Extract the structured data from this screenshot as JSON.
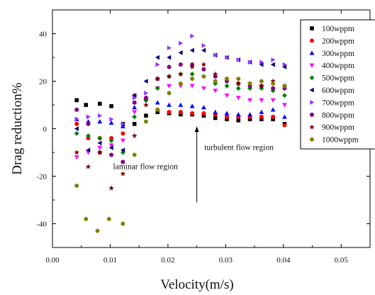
{
  "chart_data": {
    "type": "scatter",
    "title": "",
    "xlabel": "Velocity(m/s)",
    "ylabel": "Drag reduction%",
    "xlim": [
      0.0,
      0.055
    ],
    "ylim": [
      -50,
      50
    ],
    "xticks": [
      "0.00",
      "0.01",
      "0.02",
      "0.03",
      "0.04",
      "0.05"
    ],
    "xtick_values": [
      0.0,
      0.01,
      0.02,
      0.03,
      0.04,
      0.05
    ],
    "yticks": [
      "40",
      "20",
      "0",
      "-20",
      "-40"
    ],
    "ytick_values": [
      40,
      20,
      0,
      -20,
      -40
    ],
    "grid": false,
    "legend_position": "top-right",
    "annotations": [
      {
        "text": "laminar flow region",
        "x": 0.0105,
        "y": -17
      },
      {
        "text": "turbulent flow region",
        "x": 0.0263,
        "y": -9
      }
    ],
    "arrow": {
      "x": 0.025,
      "y_from": -31,
      "y_to": 1
    },
    "series": [
      {
        "name": "100wppm",
        "color": "#000000",
        "marker": "square",
        "x": [
          0.0042,
          0.0058,
          0.0082,
          0.0102,
          0.0122,
          0.0142,
          0.0162,
          0.0182,
          0.0202,
          0.0222,
          0.0242,
          0.0262,
          0.0282,
          0.0302,
          0.0322,
          0.0342,
          0.0362,
          0.0382,
          0.0402
        ],
        "y": [
          12,
          10,
          10.5,
          9.5,
          2,
          2,
          5.5,
          7,
          6.5,
          6,
          6,
          5.5,
          4.5,
          4,
          3.5,
          4,
          4,
          4,
          2
        ]
      },
      {
        "name": "200wppm",
        "color": "#ff0000",
        "marker": "circle",
        "x": [
          0.0042,
          0.0062,
          0.0082,
          0.0102,
          0.0122,
          0.0142,
          0.0162,
          0.0182,
          0.0202,
          0.0222,
          0.0242,
          0.0262,
          0.0282,
          0.0302,
          0.0322,
          0.0342,
          0.0362,
          0.0382,
          0.0402
        ],
        "y": [
          2,
          -4,
          -4,
          -4,
          -2,
          14,
          12,
          8,
          7,
          7,
          6.5,
          6.5,
          6,
          5,
          5,
          5,
          5,
          5,
          1.5
        ]
      },
      {
        "name": "300wppm",
        "color": "#0000ff",
        "marker": "triangle-up",
        "x": [
          0.0042,
          0.0062,
          0.0082,
          0.0102,
          0.0122,
          0.0142,
          0.0162,
          0.0182,
          0.0202,
          0.0222,
          0.0242,
          0.0262,
          0.0282,
          0.0302,
          0.0322,
          0.0342,
          0.0362,
          0.0382,
          0.0402
        ],
        "y": [
          4,
          3,
          3,
          2.5,
          1,
          9,
          13,
          11,
          10,
          10,
          9.5,
          9,
          7,
          6.5,
          6,
          6,
          7,
          8,
          5
        ]
      },
      {
        "name": "400wppm",
        "color": "#ff00ff",
        "marker": "triangle-down",
        "x": [
          0.0042,
          0.0062,
          0.0082,
          0.0102,
          0.0122,
          0.0142,
          0.0162,
          0.0182,
          0.0202,
          0.0222,
          0.0242,
          0.0262,
          0.0282,
          0.0302,
          0.0322,
          0.0342,
          0.0362,
          0.0382,
          0.0402
        ],
        "y": [
          -12,
          -10,
          -8,
          -7,
          -5,
          7,
          12,
          17,
          18,
          18,
          18,
          17,
          16,
          14,
          13,
          12,
          12,
          12,
          10
        ]
      },
      {
        "name": "500wppm",
        "color": "#008000",
        "marker": "diamond",
        "x": [
          0.0042,
          0.0062,
          0.0082,
          0.0102,
          0.0122,
          0.0142,
          0.0162,
          0.0182,
          0.0202,
          0.0222,
          0.0242,
          0.0262,
          0.0282,
          0.0302,
          0.0322,
          0.0342,
          0.0362,
          0.0382,
          0.0402
        ],
        "y": [
          -2,
          -3,
          -4,
          -5,
          -10,
          5,
          12,
          17,
          22,
          23,
          23,
          22,
          19,
          18,
          17,
          17,
          17,
          16,
          14
        ]
      },
      {
        "name": "600wppm",
        "color": "#000080",
        "marker": "triangle-left",
        "x": [
          0.0042,
          0.0062,
          0.0082,
          0.0102,
          0.0122,
          0.0142,
          0.0162,
          0.0182,
          0.0202,
          0.0222,
          0.0242,
          0.0262,
          0.0282,
          0.0302,
          0.0322,
          0.0342,
          0.0362,
          0.0382,
          0.0402
        ],
        "y": [
          0,
          -9,
          -6,
          -8,
          -9,
          14,
          20,
          30,
          30,
          32,
          33,
          33,
          31,
          30,
          29,
          28,
          27,
          27,
          26
        ]
      },
      {
        "name": "700wppm",
        "color": "#9933ff",
        "marker": "triangle-right",
        "x": [
          0.0042,
          0.0062,
          0.0082,
          0.0102,
          0.0122,
          0.0142,
          0.0162,
          0.0182,
          0.0202,
          0.0222,
          0.0242,
          0.0262,
          0.0282,
          0.0302,
          0.0322,
          0.0342,
          0.0362,
          0.0382,
          0.0402
        ],
        "y": [
          4,
          5,
          5.5,
          4,
          2,
          13,
          15,
          27,
          34,
          36,
          39,
          35,
          31,
          30,
          29,
          28,
          28,
          29,
          27
        ]
      },
      {
        "name": "800wppm",
        "color": "#800080",
        "marker": "circle",
        "x": [
          0.0042,
          0.0062,
          0.0082,
          0.0102,
          0.0122,
          0.0142,
          0.0162,
          0.0182,
          0.0202,
          0.0222,
          0.0242,
          0.0262,
          0.0282,
          0.0302,
          0.0322,
          0.0342,
          0.0362,
          0.0382,
          0.0402
        ],
        "y": [
          8,
          2,
          -10,
          -11,
          -14,
          11,
          13,
          21,
          26,
          27,
          27,
          25,
          22,
          20,
          19,
          18,
          18,
          17,
          17
        ]
      },
      {
        "name": "900wppm",
        "color": "#800000",
        "marker": "star",
        "x": [
          0.0042,
          0.0062,
          0.0082,
          0.0102,
          0.0122,
          0.0142,
          0.0162,
          0.0182,
          0.0202,
          0.0222,
          0.0242,
          0.0262,
          0.0282,
          0.0302,
          0.0322,
          0.0342,
          0.0362,
          0.0382,
          0.0402
        ],
        "y": [
          -10,
          -16,
          -10,
          -25,
          -19,
          -3,
          10,
          21,
          22,
          23,
          26,
          27,
          23,
          21,
          19,
          19,
          18,
          20,
          18
        ]
      },
      {
        "name": "1000wppm",
        "color": "#808000",
        "marker": "hexagon",
        "x": [
          0.0042,
          0.0058,
          0.0078,
          0.0098,
          0.0122,
          0.0142,
          0.0162,
          0.0182,
          0.0202,
          0.0222,
          0.0242,
          0.0262,
          0.0282,
          0.0302,
          0.0322,
          0.0342,
          0.0362,
          0.0382,
          0.0402
        ],
        "y": [
          -24,
          -38,
          -43,
          -38,
          -40,
          -11,
          3,
          8,
          15,
          19,
          21,
          22,
          20,
          21,
          21,
          19,
          20,
          19,
          18
        ]
      }
    ]
  }
}
